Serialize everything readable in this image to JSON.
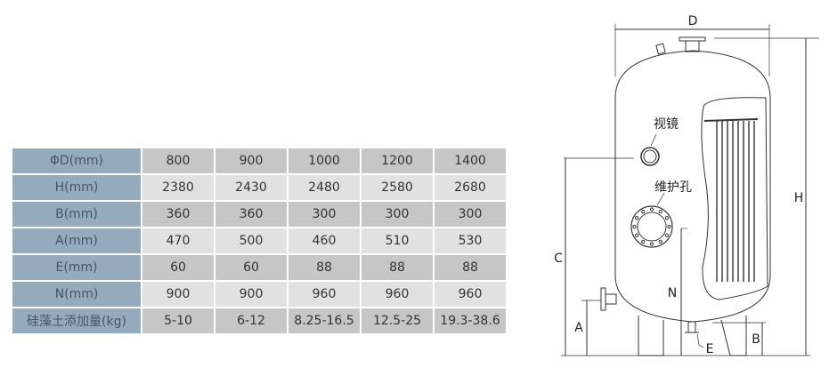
{
  "table": {
    "rows": [
      {
        "label": "ΦD(mm)",
        "values": [
          "800",
          "900",
          "1000",
          "1200",
          "1400"
        ]
      },
      {
        "label": "H(mm)",
        "values": [
          "2380",
          "2430",
          "2480",
          "2580",
          "2680"
        ]
      },
      {
        "label": "B(mm)",
        "values": [
          "360",
          "360",
          "300",
          "300",
          "300"
        ]
      },
      {
        "label": "A(mm)",
        "values": [
          "470",
          "500",
          "460",
          "510",
          "530"
        ]
      },
      {
        "label": "E(mm)",
        "values": [
          "60",
          "60",
          "88",
          "88",
          "88"
        ]
      },
      {
        "label": "N(mm)",
        "values": [
          "900",
          "900",
          "960",
          "960",
          "960"
        ]
      },
      {
        "label": "硅藻土添加量(kg)",
        "values": [
          "5-10",
          "6-12",
          "8.25-16.5",
          "12.5-25",
          "19.3-38.6"
        ]
      }
    ]
  },
  "diagram": {
    "labels": {
      "D": "D",
      "H": "H",
      "C": "C",
      "A": "A",
      "N": "N",
      "B": "B",
      "E": "E",
      "sight_glass": "视镜",
      "manhole": "维护孔"
    }
  },
  "colors": {
    "header_col": "#94abbd",
    "row_dark": "#c6c6c6",
    "row_light": "#e1e1e1"
  }
}
